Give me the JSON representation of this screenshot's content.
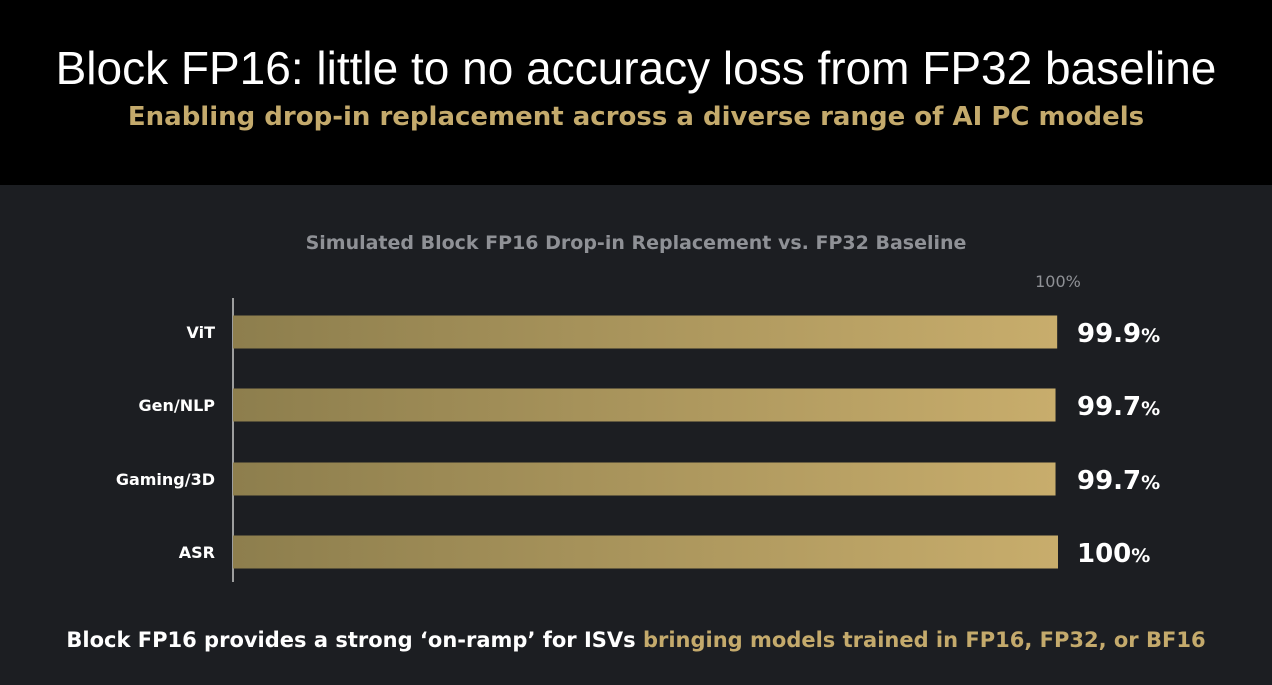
{
  "header": {
    "title": "Block FP16: little to no accuracy loss from FP32 baseline",
    "subtitle": "Enabling drop-in replacement across a diverse range of AI PC models"
  },
  "footer": {
    "text_white": "Block FP16 provides a strong ‘on-ramp’ for ISVs ",
    "text_gold": "bringing models trained in FP16, FP32, or BF16"
  },
  "colors": {
    "gold": "#c4aa6c",
    "bar_dark": "#8d7e4d",
    "bar_light": "#c8ad6c",
    "panel_bg": "#1c1e22"
  },
  "chart_data": {
    "type": "bar",
    "orientation": "horizontal",
    "title": "Simulated Block FP16 Drop-in Replacement vs. FP32 Baseline",
    "reference_label": "100%",
    "reference_value": 100,
    "xlim": [
      0,
      100
    ],
    "categories": [
      "ViT",
      "Gen/NLP",
      "Gaming/3D",
      "ASR"
    ],
    "values": [
      99.9,
      99.7,
      99.7,
      100
    ],
    "value_labels": [
      "99.9",
      "99.7",
      "99.7",
      "100"
    ],
    "value_unit": "%"
  }
}
